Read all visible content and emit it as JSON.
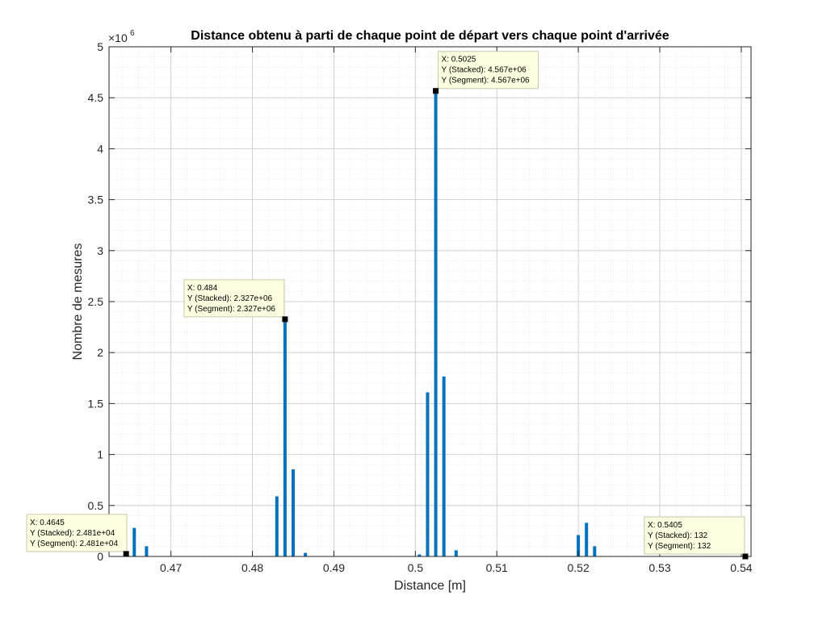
{
  "chart_data": {
    "type": "bar",
    "title": "Distance obtenu à parti de chaque point de départ vers chaque point d'arrivée",
    "xlabel": "Distance [m]",
    "ylabel": "Nombre de mesures",
    "xlim": [
      0.4624,
      0.5412
    ],
    "ylim": [
      0,
      5000000
    ],
    "y_exponent_label": "×10",
    "y_exponent_power": "6",
    "grid": true,
    "minor_grid": true,
    "bar_color": "#0072bd",
    "x_ticks": [
      {
        "value": 0.47,
        "label": "0.47"
      },
      {
        "value": 0.48,
        "label": "0.48"
      },
      {
        "value": 0.49,
        "label": "0.49"
      },
      {
        "value": 0.5,
        "label": "0.5"
      },
      {
        "value": 0.51,
        "label": "0.51"
      },
      {
        "value": 0.52,
        "label": "0.52"
      },
      {
        "value": 0.53,
        "label": "0.53"
      },
      {
        "value": 0.54,
        "label": "0.54"
      }
    ],
    "y_ticks": [
      {
        "value": 0,
        "label": "0"
      },
      {
        "value": 500000,
        "label": "0.5"
      },
      {
        "value": 1000000,
        "label": "1"
      },
      {
        "value": 1500000,
        "label": "1.5"
      },
      {
        "value": 2000000,
        "label": "2"
      },
      {
        "value": 2500000,
        "label": "2.5"
      },
      {
        "value": 3000000,
        "label": "3"
      },
      {
        "value": 3500000,
        "label": "3.5"
      },
      {
        "value": 4000000,
        "label": "4"
      },
      {
        "value": 4500000,
        "label": "4.5"
      },
      {
        "value": 5000000,
        "label": "5"
      }
    ],
    "bars": [
      {
        "x": 0.4645,
        "y": 24810
      },
      {
        "x": 0.4655,
        "y": 280000
      },
      {
        "x": 0.467,
        "y": 100000
      },
      {
        "x": 0.483,
        "y": 590000
      },
      {
        "x": 0.484,
        "y": 2327000
      },
      {
        "x": 0.485,
        "y": 855000
      },
      {
        "x": 0.4865,
        "y": 35000
      },
      {
        "x": 0.5005,
        "y": 20000
      },
      {
        "x": 0.5015,
        "y": 1610000
      },
      {
        "x": 0.5025,
        "y": 4567000
      },
      {
        "x": 0.5035,
        "y": 1765000
      },
      {
        "x": 0.505,
        "y": 60000
      },
      {
        "x": 0.52,
        "y": 210000
      },
      {
        "x": 0.521,
        "y": 330000
      },
      {
        "x": 0.522,
        "y": 100000
      },
      {
        "x": 0.5405,
        "y": 132
      }
    ],
    "datatips": [
      {
        "x": 0.4645,
        "y": 24810,
        "side": "above-left",
        "lines": [
          "X: 0.4645",
          "Y (Stacked): 2.481e+04",
          "Y (Segment): 2.481e+04"
        ]
      },
      {
        "x": 0.484,
        "y": 2327000,
        "side": "above-left",
        "lines": [
          "X: 0.484",
          "Y (Stacked): 2.327e+06",
          "Y (Segment): 2.327e+06"
        ]
      },
      {
        "x": 0.5025,
        "y": 4567000,
        "side": "above-right",
        "lines": [
          "X: 0.5025",
          "Y (Stacked): 4.567e+06",
          "Y (Segment): 4.567e+06"
        ]
      },
      {
        "x": 0.5405,
        "y": 132,
        "side": "above-left",
        "lines": [
          "X: 0.5405",
          "Y (Stacked): 132",
          "Y (Segment): 132"
        ]
      }
    ]
  }
}
